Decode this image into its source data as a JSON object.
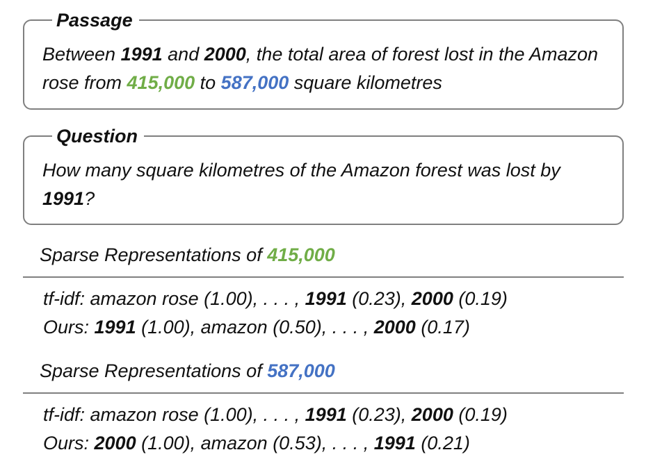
{
  "passage": {
    "title": "Passage",
    "pre": "Between ",
    "year1": "1991",
    "and": " and ",
    "year2": "2000",
    "mid": ", the total area of forest lost in the Amazon rose from ",
    "value1": "415,000",
    "to": " to ",
    "value2": "587,000",
    "post": " square kilometres"
  },
  "question": {
    "title": "Question",
    "pre": "How many square kilometres of the Amazon forest was lost by ",
    "year": "1991",
    "post": "?"
  },
  "sections": [
    {
      "heading_prefix": "Sparse Representations of ",
      "heading_value": "415,000",
      "tfidf": {
        "label": "tf-idf: ",
        "a": "amazon rose (1.00), . . . , ",
        "k1": "1991",
        "b": " (0.23), ",
        "k2": "2000",
        "c": " (0.19)"
      },
      "ours": {
        "label": "Ours: ",
        "k1": "1991",
        "a": " (1.00), amazon (0.50), . . . , ",
        "k2": "2000",
        "b": " (0.17)"
      }
    },
    {
      "heading_prefix": "Sparse Representations of ",
      "heading_value": "587,000",
      "tfidf": {
        "label": "tf-idf: ",
        "a": "amazon rose (1.00), . . . , ",
        "k1": "1991",
        "b": " (0.23), ",
        "k2": "2000",
        "c": " (0.19)"
      },
      "ours": {
        "label": "Ours: ",
        "k1": "2000",
        "a": " (1.00), amazon (0.53), . . . , ",
        "k2": "1991",
        "b": " (0.21)"
      }
    }
  ],
  "colors": {
    "value1": "#70ad47",
    "value2": "#4472c4",
    "border": "#7f7f7f"
  }
}
